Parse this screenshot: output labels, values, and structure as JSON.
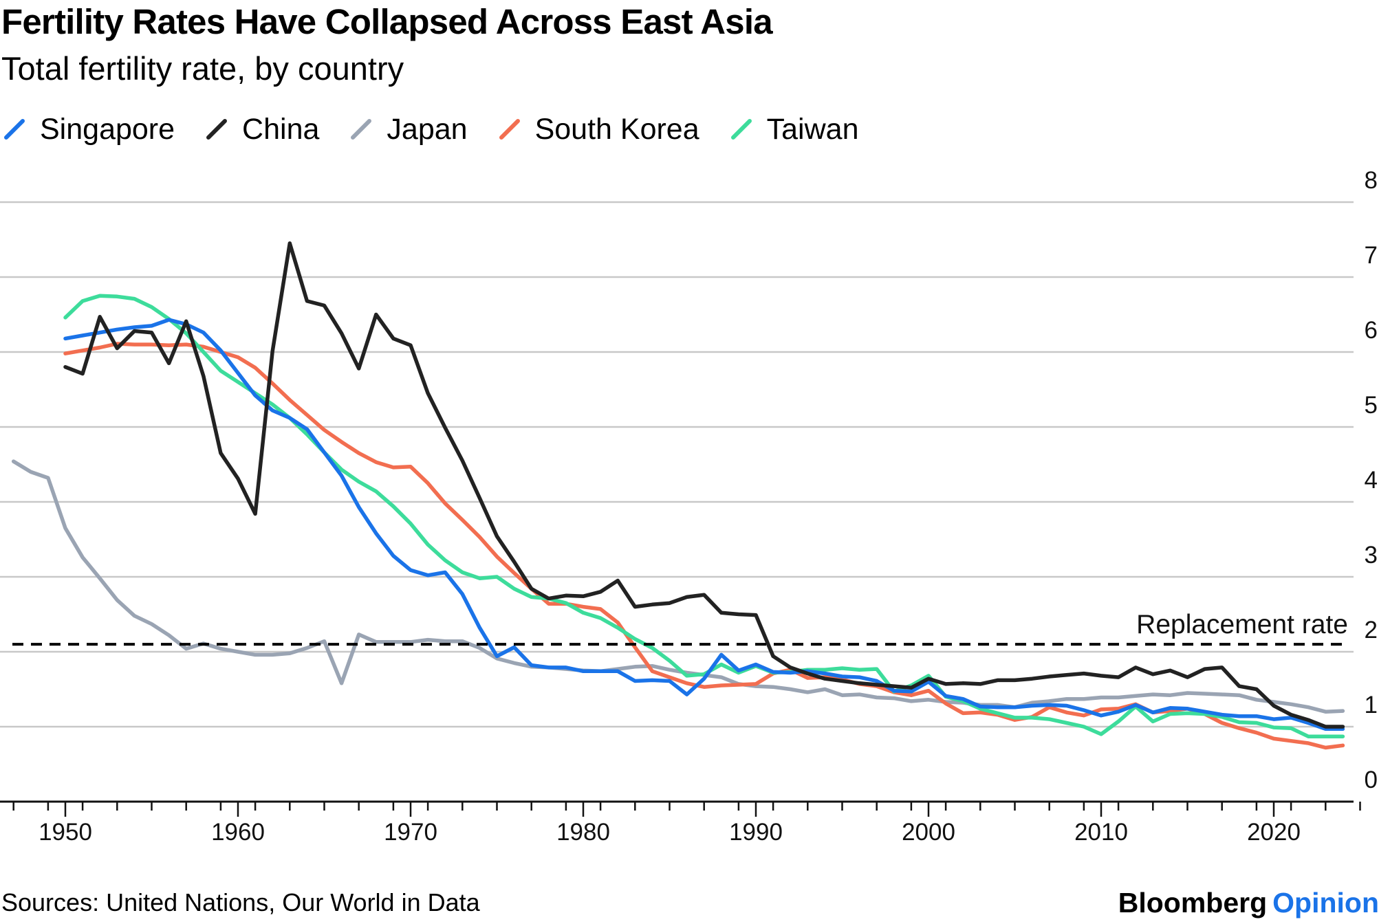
{
  "header": {
    "title": "Fertility Rates Have Collapsed Across East Asia",
    "subtitle": "Total fertility rate, by country"
  },
  "footer": {
    "source": "Sources: United Nations, Our World in Data",
    "brand": "Bloomberg",
    "brand_accent": "Opinion"
  },
  "chart_data": {
    "type": "line",
    "title": "Fertility Rates Have Collapsed Across East Asia",
    "subtitle": "Total fertility rate, by country",
    "xlabel": "",
    "ylabel": "",
    "xlim": [
      1947,
      2025
    ],
    "ylim": [
      0,
      8
    ],
    "x_ticks": [
      1950,
      1960,
      1970,
      1980,
      1990,
      2000,
      2010,
      2020
    ],
    "y_ticks": [
      0,
      1,
      2,
      3,
      4,
      5,
      6,
      7,
      8
    ],
    "grid": true,
    "legend_position": "top-left",
    "reference_line": {
      "label": "Replacement rate",
      "value": 2.1
    },
    "series": [
      {
        "name": "Japan",
        "color": "#9aa4b3",
        "x": [
          1947,
          1948,
          1949,
          1950,
          1951,
          1952,
          1953,
          1954,
          1955,
          1956,
          1957,
          1958,
          1959,
          1960,
          1961,
          1962,
          1963,
          1964,
          1965,
          1966,
          1967,
          1968,
          1969,
          1970,
          1971,
          1972,
          1973,
          1974,
          1975,
          1976,
          1977,
          1978,
          1979,
          1980,
          1981,
          1982,
          1983,
          1984,
          1985,
          1986,
          1987,
          1988,
          1989,
          1990,
          1991,
          1992,
          1993,
          1994,
          1995,
          1996,
          1997,
          1998,
          1999,
          2000,
          2001,
          2002,
          2003,
          2004,
          2005,
          2006,
          2007,
          2008,
          2009,
          2010,
          2011,
          2012,
          2013,
          2014,
          2015,
          2016,
          2017,
          2018,
          2019,
          2020,
          2021,
          2022,
          2023,
          2024
        ],
        "values": [
          4.54,
          4.4,
          4.32,
          3.65,
          3.26,
          2.98,
          2.69,
          2.48,
          2.37,
          2.22,
          2.04,
          2.11,
          2.04,
          2.0,
          1.96,
          1.96,
          1.98,
          2.05,
          2.14,
          1.58,
          2.23,
          2.13,
          2.13,
          2.13,
          2.16,
          2.14,
          2.14,
          2.05,
          1.91,
          1.85,
          1.8,
          1.79,
          1.77,
          1.75,
          1.74,
          1.77,
          1.8,
          1.81,
          1.76,
          1.72,
          1.69,
          1.66,
          1.57,
          1.54,
          1.53,
          1.5,
          1.46,
          1.5,
          1.42,
          1.43,
          1.39,
          1.38,
          1.34,
          1.36,
          1.33,
          1.32,
          1.29,
          1.29,
          1.26,
          1.32,
          1.34,
          1.37,
          1.37,
          1.39,
          1.39,
          1.41,
          1.43,
          1.42,
          1.45,
          1.44,
          1.43,
          1.42,
          1.36,
          1.33,
          1.3,
          1.26,
          1.2,
          1.21
        ]
      },
      {
        "name": "South Korea",
        "color": "#f26e50",
        "x": [
          1950,
          1951,
          1952,
          1953,
          1954,
          1955,
          1956,
          1957,
          1958,
          1959,
          1960,
          1961,
          1962,
          1963,
          1964,
          1965,
          1966,
          1967,
          1968,
          1969,
          1970,
          1971,
          1972,
          1973,
          1974,
          1975,
          1976,
          1977,
          1978,
          1979,
          1980,
          1981,
          1982,
          1983,
          1984,
          1985,
          1986,
          1987,
          1988,
          1989,
          1990,
          1991,
          1992,
          1993,
          1994,
          1995,
          1996,
          1997,
          1998,
          1999,
          2000,
          2001,
          2002,
          2003,
          2004,
          2005,
          2006,
          2007,
          2008,
          2009,
          2010,
          2011,
          2012,
          2013,
          2014,
          2015,
          2016,
          2017,
          2018,
          2019,
          2020,
          2021,
          2022,
          2023,
          2024
        ],
        "values": [
          5.98,
          6.02,
          6.06,
          6.11,
          6.1,
          6.1,
          6.09,
          6.1,
          6.07,
          6.0,
          5.93,
          5.79,
          5.58,
          5.36,
          5.16,
          4.96,
          4.8,
          4.65,
          4.53,
          4.46,
          4.47,
          4.25,
          3.98,
          3.76,
          3.53,
          3.27,
          3.05,
          2.84,
          2.64,
          2.64,
          2.6,
          2.57,
          2.39,
          2.06,
          1.74,
          1.66,
          1.58,
          1.53,
          1.55,
          1.56,
          1.57,
          1.71,
          1.76,
          1.65,
          1.66,
          1.63,
          1.57,
          1.54,
          1.46,
          1.42,
          1.48,
          1.31,
          1.18,
          1.19,
          1.16,
          1.09,
          1.13,
          1.26,
          1.19,
          1.15,
          1.23,
          1.24,
          1.3,
          1.19,
          1.21,
          1.24,
          1.17,
          1.05,
          0.98,
          0.92,
          0.84,
          0.81,
          0.78,
          0.72,
          0.75
        ]
      },
      {
        "name": "Taiwan",
        "color": "#3ddc9b",
        "x": [
          1950,
          1951,
          1952,
          1953,
          1954,
          1955,
          1956,
          1957,
          1958,
          1959,
          1960,
          1961,
          1962,
          1963,
          1964,
          1965,
          1966,
          1967,
          1968,
          1969,
          1970,
          1971,
          1972,
          1973,
          1974,
          1975,
          1976,
          1977,
          1978,
          1979,
          1980,
          1981,
          1982,
          1983,
          1984,
          1985,
          1986,
          1987,
          1988,
          1989,
          1990,
          1991,
          1992,
          1993,
          1994,
          1995,
          1996,
          1997,
          1998,
          1999,
          2000,
          2001,
          2002,
          2003,
          2004,
          2005,
          2006,
          2007,
          2008,
          2009,
          2010,
          2011,
          2012,
          2013,
          2014,
          2015,
          2016,
          2017,
          2018,
          2019,
          2020,
          2021,
          2022,
          2023,
          2024
        ],
        "values": [
          6.46,
          6.68,
          6.75,
          6.74,
          6.71,
          6.6,
          6.44,
          6.25,
          6.0,
          5.75,
          5.6,
          5.45,
          5.3,
          5.12,
          4.9,
          4.66,
          4.43,
          4.27,
          4.14,
          3.94,
          3.71,
          3.43,
          3.22,
          3.06,
          2.98,
          3.0,
          2.84,
          2.73,
          2.71,
          2.65,
          2.52,
          2.45,
          2.32,
          2.17,
          2.05,
          1.88,
          1.68,
          1.7,
          1.83,
          1.72,
          1.81,
          1.72,
          1.73,
          1.76,
          1.76,
          1.78,
          1.76,
          1.77,
          1.47,
          1.55,
          1.68,
          1.4,
          1.34,
          1.24,
          1.18,
          1.12,
          1.12,
          1.1,
          1.05,
          1.0,
          0.9,
          1.07,
          1.27,
          1.07,
          1.17,
          1.18,
          1.17,
          1.13,
          1.06,
          1.05,
          0.99,
          0.98,
          0.87,
          0.87,
          0.87
        ]
      },
      {
        "name": "Singapore",
        "color": "#1a73e8",
        "x": [
          1950,
          1951,
          1952,
          1953,
          1954,
          1955,
          1956,
          1957,
          1958,
          1959,
          1960,
          1961,
          1962,
          1963,
          1964,
          1965,
          1966,
          1967,
          1968,
          1969,
          1970,
          1971,
          1972,
          1973,
          1974,
          1975,
          1976,
          1977,
          1978,
          1979,
          1980,
          1981,
          1982,
          1983,
          1984,
          1985,
          1986,
          1987,
          1988,
          1989,
          1990,
          1991,
          1992,
          1993,
          1994,
          1995,
          1996,
          1997,
          1998,
          1999,
          2000,
          2001,
          2002,
          2003,
          2004,
          2005,
          2006,
          2007,
          2008,
          2009,
          2010,
          2011,
          2012,
          2013,
          2014,
          2015,
          2016,
          2017,
          2018,
          2019,
          2020,
          2021,
          2022,
          2023,
          2024
        ],
        "values": [
          6.18,
          6.22,
          6.26,
          6.3,
          6.33,
          6.35,
          6.43,
          6.37,
          6.26,
          6.02,
          5.72,
          5.42,
          5.22,
          5.12,
          4.97,
          4.66,
          4.35,
          3.93,
          3.58,
          3.28,
          3.09,
          3.02,
          3.06,
          2.77,
          2.32,
          1.94,
          2.06,
          1.82,
          1.79,
          1.79,
          1.74,
          1.74,
          1.74,
          1.61,
          1.62,
          1.61,
          1.43,
          1.64,
          1.96,
          1.75,
          1.83,
          1.73,
          1.72,
          1.74,
          1.71,
          1.67,
          1.66,
          1.61,
          1.48,
          1.47,
          1.6,
          1.41,
          1.37,
          1.27,
          1.26,
          1.26,
          1.28,
          1.29,
          1.28,
          1.22,
          1.15,
          1.2,
          1.29,
          1.19,
          1.25,
          1.24,
          1.2,
          1.16,
          1.14,
          1.14,
          1.1,
          1.12,
          1.05,
          0.97,
          0.97
        ]
      },
      {
        "name": "China",
        "color": "#222222",
        "x": [
          1950,
          1951,
          1952,
          1953,
          1954,
          1955,
          1956,
          1957,
          1958,
          1959,
          1960,
          1961,
          1962,
          1963,
          1964,
          1965,
          1966,
          1967,
          1968,
          1969,
          1970,
          1971,
          1972,
          1973,
          1974,
          1975,
          1976,
          1977,
          1978,
          1979,
          1980,
          1981,
          1982,
          1983,
          1984,
          1985,
          1986,
          1987,
          1988,
          1989,
          1990,
          1991,
          1992,
          1993,
          1994,
          1995,
          1996,
          1997,
          1998,
          1999,
          2000,
          2001,
          2002,
          2003,
          2004,
          2005,
          2006,
          2007,
          2008,
          2009,
          2010,
          2011,
          2012,
          2013,
          2014,
          2015,
          2016,
          2017,
          2018,
          2019,
          2020,
          2021,
          2022,
          2023,
          2024
        ],
        "values": [
          5.8,
          5.71,
          6.47,
          6.05,
          6.28,
          6.26,
          5.85,
          6.41,
          5.68,
          4.65,
          4.31,
          3.84,
          6.01,
          7.45,
          6.68,
          6.62,
          6.25,
          5.78,
          6.5,
          6.18,
          6.09,
          5.45,
          4.99,
          4.55,
          4.05,
          3.54,
          3.2,
          2.84,
          2.71,
          2.75,
          2.74,
          2.8,
          2.95,
          2.6,
          2.63,
          2.65,
          2.73,
          2.76,
          2.52,
          2.5,
          2.49,
          1.94,
          1.79,
          1.71,
          1.64,
          1.61,
          1.58,
          1.56,
          1.54,
          1.52,
          1.64,
          1.57,
          1.58,
          1.57,
          1.62,
          1.62,
          1.64,
          1.67,
          1.69,
          1.71,
          1.68,
          1.66,
          1.79,
          1.7,
          1.75,
          1.66,
          1.77,
          1.79,
          1.54,
          1.5,
          1.28,
          1.16,
          1.09,
          1.0,
          1.0
        ]
      }
    ]
  }
}
